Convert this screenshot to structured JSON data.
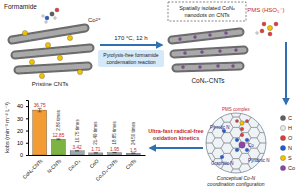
{
  "chart_data": {
    "type": "bar",
    "y_label": "kobs (min⁻¹ m⁻² L⁻¹)",
    "categories": [
      "CoNₓ-CNTs",
      "N-CNTs",
      "Co₃O₄",
      "CoO",
      "Co₃O₄-CNTs",
      "CNTs"
    ],
    "values": [
      36.75,
      12.85,
      3.42,
      1.71,
      1.95,
      1.5
    ],
    "errors": [
      1.41,
      0.42,
      0.15,
      0.09,
      0.11,
      0.08
    ],
    "colors": [
      "#f39c34",
      "#7cb342",
      "#9fa8b0",
      "#9fa8b0",
      "#9fa8b0",
      "#9fa8b0"
    ],
    "annotations": [
      "2.86 times",
      "10.75 times",
      "21.49 times",
      "18.85 times",
      "24.50 times"
    ],
    "ylim": [
      0,
      45
    ],
    "yticks": [
      0,
      10,
      20,
      30,
      40
    ],
    "data_labels": true,
    "grid": false
  },
  "diagram": {
    "formamide_label": "Formamide",
    "cobalt_label": "Co²⁺",
    "pristine_label": "Pristine CNTs",
    "condition": "170 °C, 12 h",
    "reaction": [
      "Pyrolysis-free formamide",
      "condensation reaction"
    ],
    "highlight": [
      "Spatially isolated CoNₓ",
      "nanodots on CNTs"
    ],
    "product_label": "CoNₓ-CNTs",
    "oxidant_label": "PMS (HSO₅⁻)",
    "kinetics": [
      "Ultra-fast radical-free",
      "oxidation kinetics"
    ],
    "mechanism_labels": [
      "PMS complex",
      "Pyrrolic N",
      "Pyridinic N",
      "Graphitic N",
      "Co"
    ],
    "mechanism_caption": [
      "Conceptual Co-N",
      "coordination configuration"
    ],
    "atom_legend": [
      {
        "symbol": "C",
        "color": "#606060"
      },
      {
        "symbol": "H",
        "color": "#e8e8e8"
      },
      {
        "symbol": "O",
        "color": "#e53935"
      },
      {
        "symbol": "N",
        "color": "#1e5bd8"
      },
      {
        "symbol": "S",
        "color": "#f2c200"
      },
      {
        "symbol": "Co",
        "color": "#8e44ad"
      }
    ]
  }
}
